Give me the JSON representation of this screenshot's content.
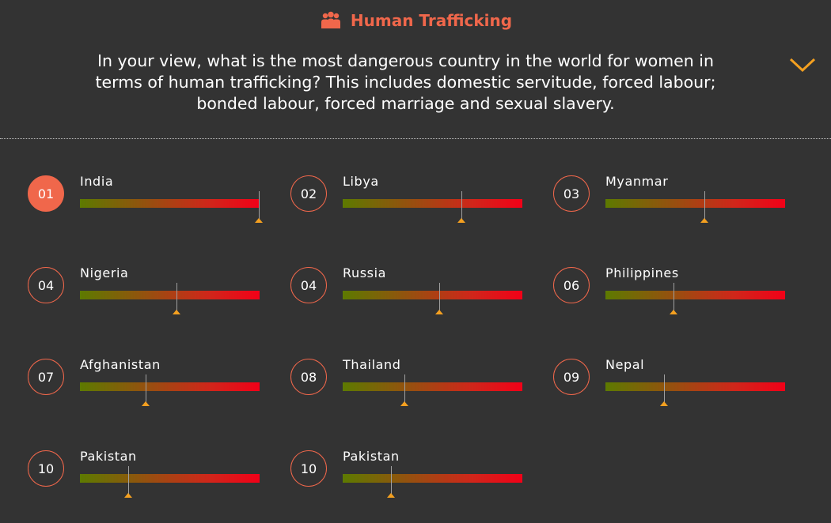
{
  "header": {
    "title": "Human Trafficking",
    "title_icon": "people-group-icon",
    "question": "In your view, what is the most dangerous country in the world for women in terms of human trafficking? This includes domestic servitude, forced labour; bonded labour, forced marriage and sexual slavery.",
    "toggle_icon": "chevron-down-icon"
  },
  "colors": {
    "accent": "#f0674b",
    "background": "#333333",
    "marker": "#f4a020",
    "bar_start": "#5d7a00",
    "bar_end": "#f20018"
  },
  "rankings": [
    {
      "rank": "01",
      "country": "India",
      "level": 1.0,
      "selected": true
    },
    {
      "rank": "02",
      "country": "Libya",
      "level": 0.665,
      "selected": false
    },
    {
      "rank": "03",
      "country": "Myanmar",
      "level": 0.555,
      "selected": false
    },
    {
      "rank": "04",
      "country": "Nigeria",
      "level": 0.54,
      "selected": false
    },
    {
      "rank": "04",
      "country": "Russia",
      "level": 0.54,
      "selected": false
    },
    {
      "rank": "06",
      "country": "Philippines",
      "level": 0.385,
      "selected": false
    },
    {
      "rank": "07",
      "country": "Afghanistan",
      "level": 0.37,
      "selected": false
    },
    {
      "rank": "08",
      "country": "Thailand",
      "level": 0.35,
      "selected": false
    },
    {
      "rank": "09",
      "country": "Nepal",
      "level": 0.33,
      "selected": false
    },
    {
      "rank": "10",
      "country": "Pakistan",
      "level": 0.275,
      "selected": false
    },
    {
      "rank": "10",
      "country": "Pakistan",
      "level": 0.275,
      "selected": false
    }
  ]
}
